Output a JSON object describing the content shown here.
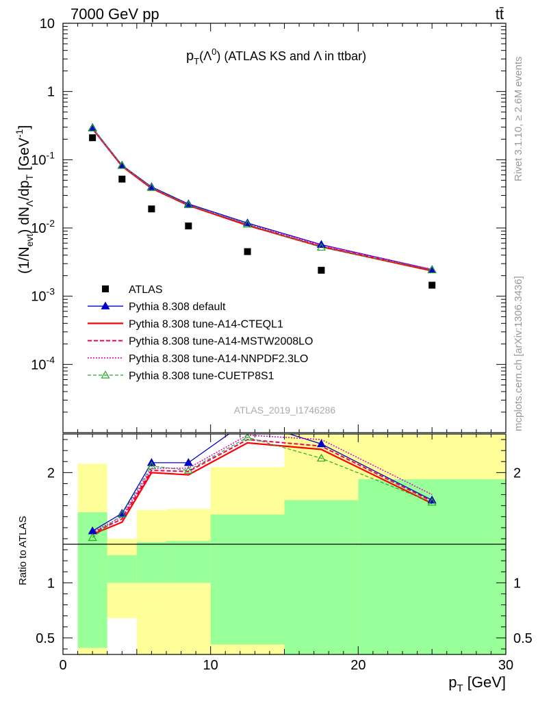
{
  "header": {
    "left": "7000 GeV pp",
    "right": "tt̄"
  },
  "side_labels": {
    "rivet": "Rivet 3.1.10, ≥ 2.6M events",
    "mcplots": "mcplots.cern.ch [arXiv:1306.3436]"
  },
  "colors": {
    "band_inner": "#99ff99",
    "band_outer": "#ffff99",
    "default": "#0000cc",
    "a14_cteql1": "#ff0000",
    "a14_mstw": "#ee0055",
    "a14_nnpdf": "#ee00cc",
    "cuetp8s1": "#22aa22",
    "data": "#000000"
  },
  "chart_data": [
    {
      "type": "line",
      "title": "p_T(Λ^0) (ATLAS KS and Λ in ttbar)",
      "title_parts": {
        "p": "p",
        "T": "T",
        "open": "(Λ",
        "sup0": "0",
        "rest": ") (ATLAS KS and Λ in ttbar)"
      },
      "ylabel": "(1/N_evt) dN_Λ/dp_T [GeV^-1]",
      "ylabel_parts": {
        "a": "(1/N",
        "evt": "evt",
        "b": ") dN",
        "lam": "Λ",
        "c": "/dp",
        "T": "T",
        "d": " [GeV",
        "e": "-1",
        "f": "]"
      },
      "yscale": "log",
      "ylim": [
        1e-05,
        10
      ],
      "xlim": [
        0,
        30
      ],
      "yticks": [
        {
          "value": 10,
          "label": "10"
        },
        {
          "value": 1,
          "label": "1"
        },
        {
          "value": 0.1,
          "base": "10",
          "exp": "-1"
        },
        {
          "value": 0.01,
          "base": "10",
          "exp": "-2"
        },
        {
          "value": 0.001,
          "base": "10",
          "exp": "-3"
        },
        {
          "value": 0.0001,
          "base": "10",
          "exp": "-4"
        }
      ],
      "watermark": "ATLAS_2019_I1746286",
      "legend_position": "bottom-left",
      "data": {
        "name": "ATLAS",
        "x": [
          2,
          4,
          6,
          8.5,
          12.5,
          17.5,
          25
        ],
        "y": [
          0.21,
          0.052,
          0.019,
          0.0107,
          0.0045,
          0.0024,
          0.00145
        ]
      },
      "series": [
        {
          "name": "Pythia 8.308 default",
          "key": "default",
          "style": "solid-triangle",
          "x": [
            2,
            4,
            6,
            8.5,
            12.5,
            17.5,
            25
          ],
          "y": [
            0.295,
            0.083,
            0.04,
            0.0225,
            0.0118,
            0.0057,
            0.00245
          ]
        },
        {
          "name": "Pythia 8.308 tune-A14-CTEQL1",
          "key": "a14_cteql1",
          "style": "solid-thick",
          "x": [
            2,
            4,
            6,
            8.5,
            12.5,
            17.5,
            25
          ],
          "y": [
            0.285,
            0.08,
            0.038,
            0.0214,
            0.0109,
            0.0053,
            0.00235
          ]
        },
        {
          "name": "Pythia 8.308 tune-A14-MSTW2008LO",
          "key": "a14_mstw",
          "style": "dashed",
          "x": [
            2,
            4,
            6,
            8.5,
            12.5,
            17.5,
            25
          ],
          "y": [
            0.288,
            0.081,
            0.039,
            0.0217,
            0.0111,
            0.0054,
            0.0024
          ]
        },
        {
          "name": "Pythia 8.308 tune-A14-NNPDF2.3LO",
          "key": "a14_nnpdf",
          "style": "dotted",
          "x": [
            2,
            4,
            6,
            8.5,
            12.5,
            17.5,
            25
          ],
          "y": [
            0.29,
            0.082,
            0.039,
            0.022,
            0.0114,
            0.0056,
            0.00248
          ]
        },
        {
          "name": "Pythia 8.308 tune-CUETP8S1",
          "key": "cuetp8s1",
          "style": "dashed-open-triangle",
          "x": [
            2,
            4,
            6,
            8.5,
            12.5,
            17.5,
            25
          ],
          "y": [
            0.29,
            0.082,
            0.039,
            0.0218,
            0.0113,
            0.0052,
            0.00242
          ]
        }
      ]
    },
    {
      "type": "line",
      "ylabel": "Ratio to ATLAS",
      "xlabel": "p_T [GeV]",
      "xlabel_parts": {
        "p": "p",
        "T": "T",
        "rest": " [GeV]"
      },
      "xlim": [
        0,
        30
      ],
      "ylim": [
        0.35,
        2.35
      ],
      "xticks": [
        0,
        10,
        20,
        30
      ],
      "yticks": [
        0.5,
        1,
        2
      ],
      "bands": [
        {
          "x0": 1,
          "x1": 3,
          "inner": [
            0.41,
            1.64
          ],
          "outer": [
            0.35,
            2.08
          ]
        },
        {
          "x0": 3,
          "x1": 5,
          "inner": [
            0.35,
            1.25
          ],
          "outer": [
            0.35,
            1.4
          ]
        },
        {
          "x0": 5,
          "x1": 7,
          "inner": [
            0.35,
            1.37
          ],
          "outer": [
            0.35,
            1.66
          ]
        },
        {
          "x0": 7,
          "x1": 10,
          "inner": [
            0.35,
            1.38
          ],
          "outer": [
            0.35,
            1.67
          ]
        },
        {
          "x0": 10,
          "x1": 15,
          "inner": [
            0.44,
            1.62
          ],
          "outer": [
            0.35,
            2.05
          ]
        },
        {
          "x0": 15,
          "x1": 20,
          "inner": [
            0.35,
            1.75
          ],
          "outer": [
            0.35,
            2.35
          ]
        },
        {
          "x0": 20,
          "x1": 30,
          "inner": [
            0.35,
            1.94
          ],
          "outer": [
            0.35,
            2.35
          ]
        }
      ],
      "band_holes": [
        {
          "x0": 3,
          "x1": 5,
          "inner": [
            0.68,
            1.0
          ],
          "outer": [
            0.86,
            1.0
          ]
        },
        {
          "x0": 5,
          "x1": 7,
          "inner": [
            0.75,
            1.0
          ],
          "outer": [
            0.75,
            1.0
          ]
        },
        {
          "x0": 7,
          "x1": 10,
          "inner": [
            0.74,
            1.0
          ],
          "outer": [
            0.74,
            1.0
          ]
        }
      ],
      "series": [
        {
          "key": "default",
          "style": "solid-triangle",
          "x": [
            2,
            4,
            6,
            8.5,
            12.5,
            17.5,
            25
          ],
          "y": [
            1.47,
            1.63,
            2.09,
            2.09,
            2.47,
            2.26,
            1.75
          ]
        },
        {
          "key": "a14_cteql1",
          "style": "solid-thick",
          "x": [
            2,
            4,
            6,
            8.5,
            12.5,
            17.5,
            25
          ],
          "y": [
            1.44,
            1.55,
            2.0,
            1.98,
            2.27,
            2.21,
            1.72
          ]
        },
        {
          "key": "a14_mstw",
          "style": "dashed",
          "x": [
            2,
            4,
            6,
            8.5,
            12.5,
            17.5,
            25
          ],
          "y": [
            1.45,
            1.58,
            2.02,
            2.01,
            2.3,
            2.24,
            1.74
          ]
        },
        {
          "key": "a14_nnpdf",
          "style": "dotted",
          "x": [
            2,
            4,
            6,
            8.5,
            12.5,
            17.5,
            25
          ],
          "y": [
            1.46,
            1.6,
            2.04,
            2.04,
            2.34,
            2.3,
            1.8
          ]
        },
        {
          "key": "cuetp8s1",
          "style": "dashed-open-triangle",
          "x": [
            2,
            4,
            6,
            8.5,
            12.5,
            17.5,
            25
          ],
          "y": [
            1.41,
            1.62,
            2.06,
            2.02,
            2.32,
            2.13,
            1.73
          ]
        }
      ]
    }
  ]
}
